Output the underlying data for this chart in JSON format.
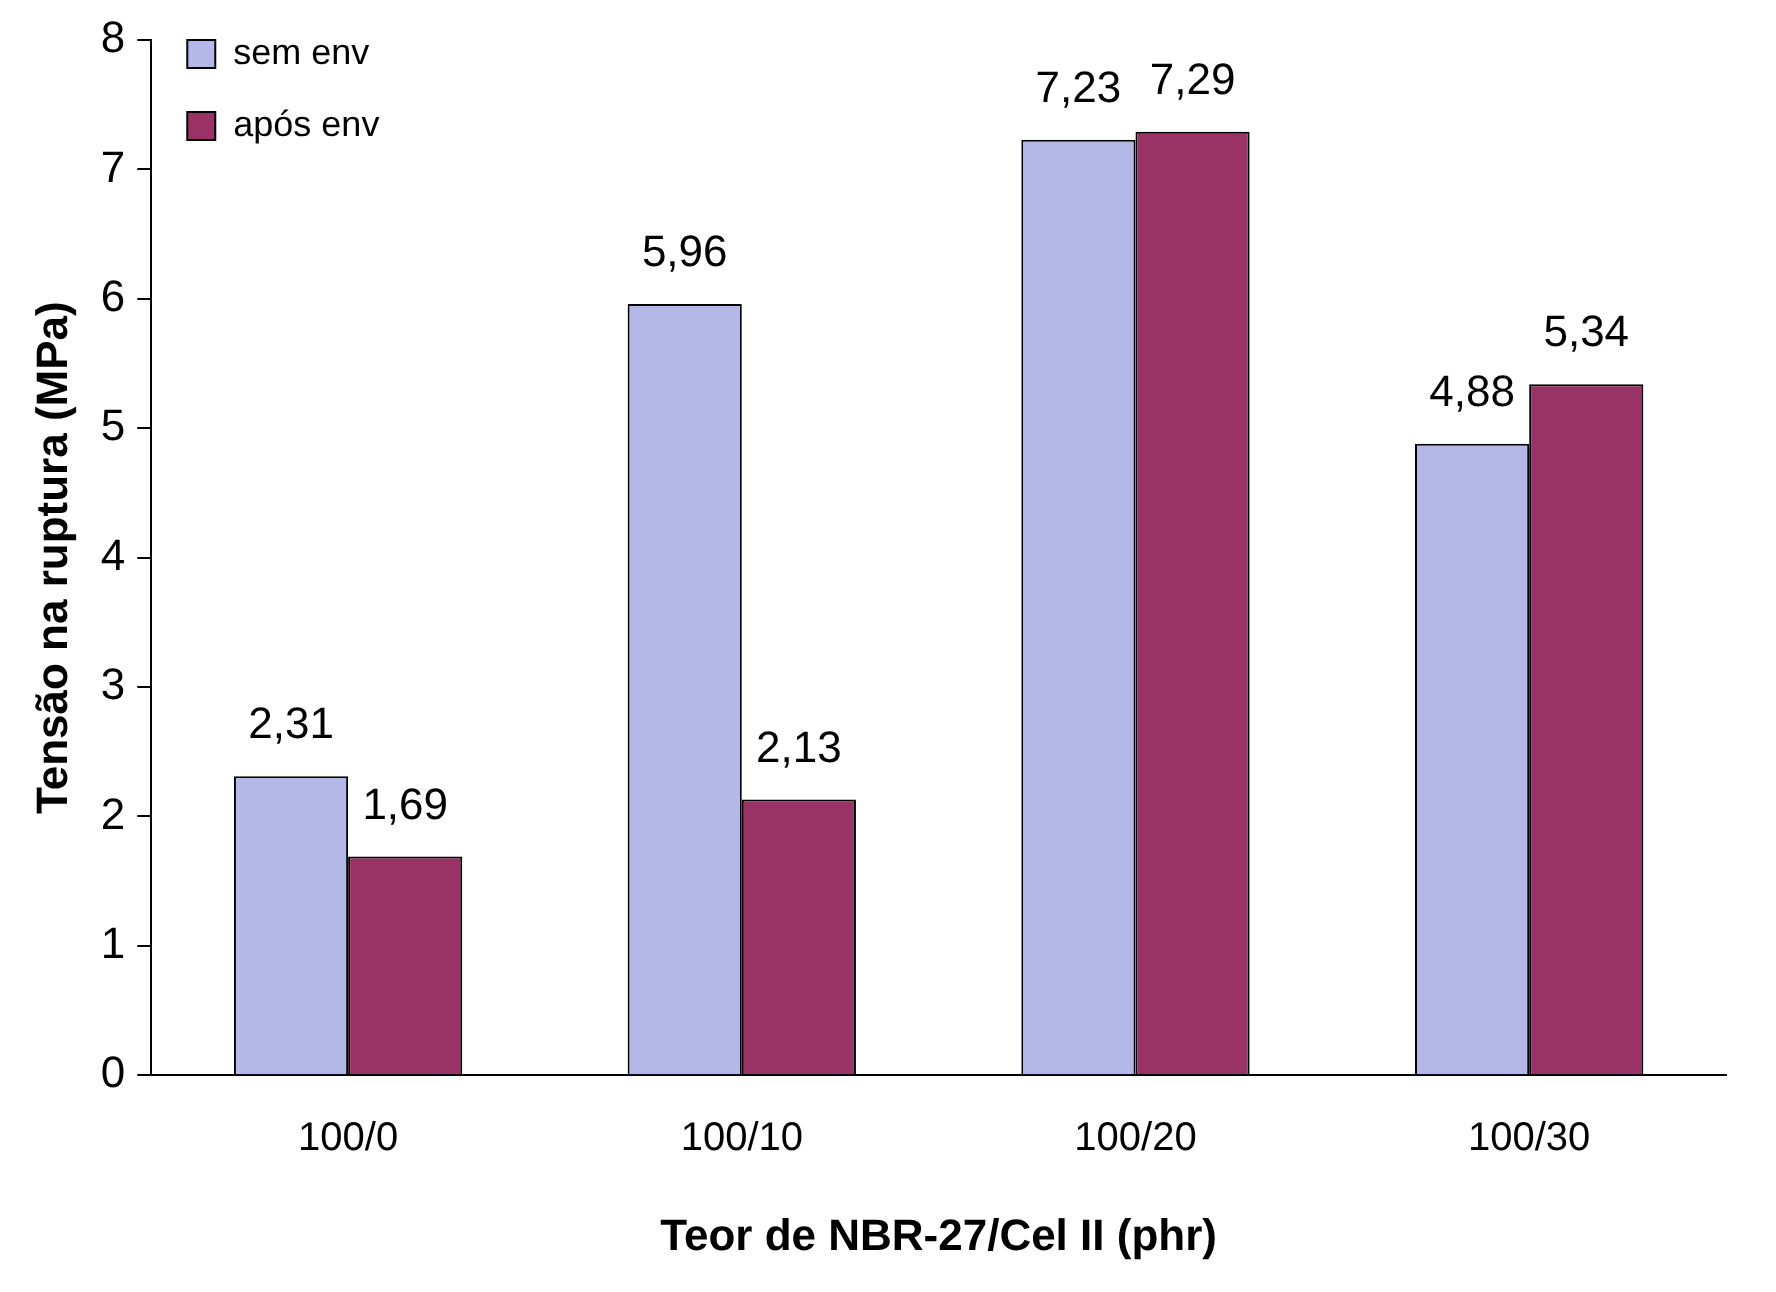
{
  "chart_data": {
    "type": "bar",
    "xlabel": "Teor de NBR-27/Cel II (phr)",
    "ylabel": "Tensão na ruptura (MPa)",
    "categories": [
      "100/0",
      "100/10",
      "100/20",
      "100/30"
    ],
    "series": [
      {
        "name": "sem env",
        "color": "#b4b8e8",
        "values": [
          2.31,
          5.96,
          7.23,
          4.88
        ],
        "value_labels": [
          "2,31",
          "5,96",
          "7,23",
          "4,88"
        ]
      },
      {
        "name": "após env",
        "color": "#993366",
        "values": [
          1.69,
          2.13,
          7.29,
          5.34
        ],
        "value_labels": [
          "1,69",
          "2,13",
          "7,29",
          "5,34"
        ]
      }
    ],
    "ylim": [
      0,
      8
    ],
    "yticks": [
      0,
      1,
      2,
      3,
      4,
      5,
      6,
      7,
      8
    ],
    "legend": "top left"
  }
}
